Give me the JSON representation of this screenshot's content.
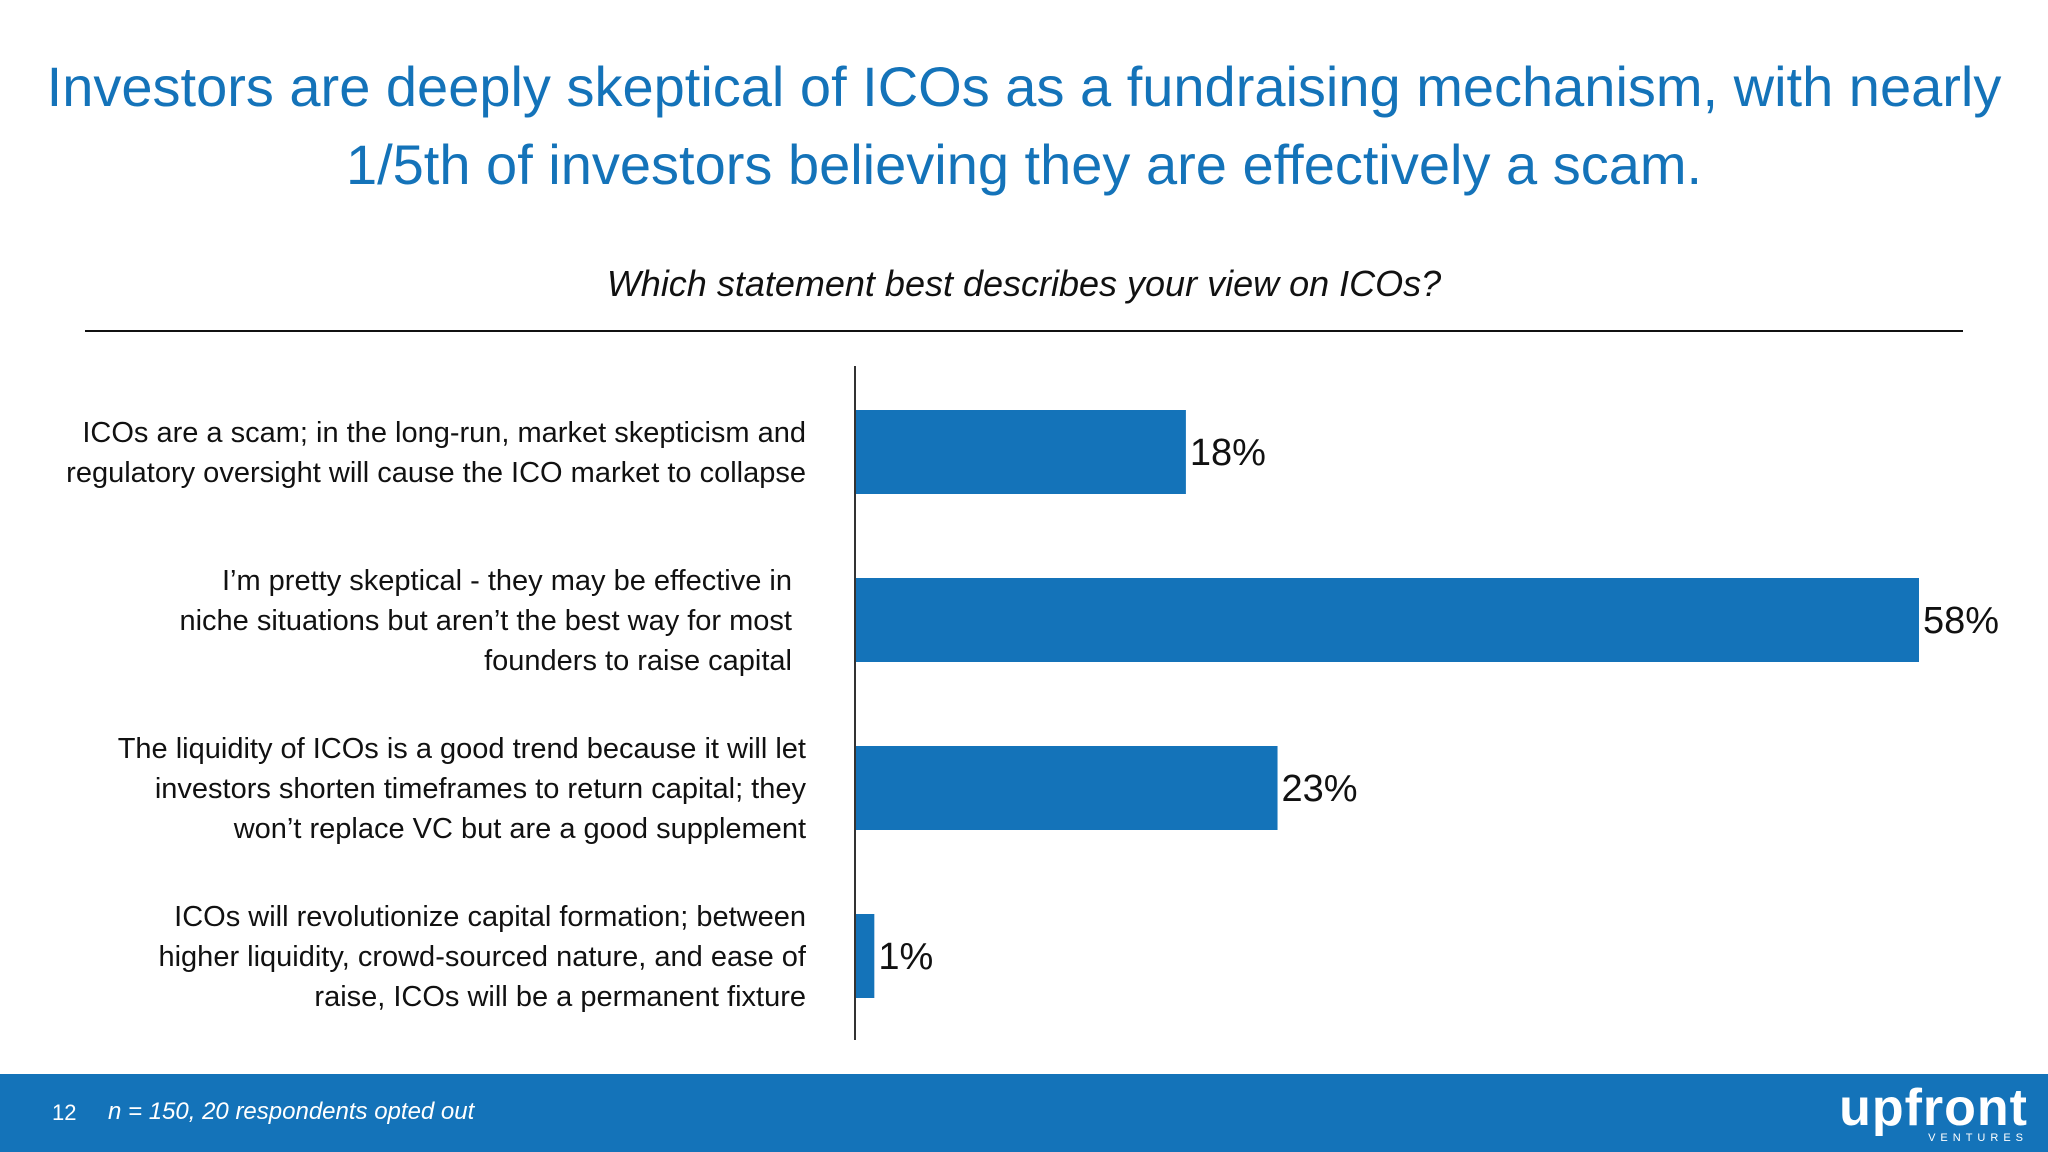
{
  "headline": {
    "line1": "Investors are deeply skeptical of ICOs as a fundraising mechanism, with nearly",
    "line2": "1/5th of investors believing they are effectively a scam."
  },
  "chart_data": {
    "type": "bar",
    "orientation": "horizontal",
    "title": "Which statement best describes your view on ICOs?",
    "categories": [
      [
        "ICOs are a scam; in the long-run, market skepticism and",
        "regulatory oversight will cause the ICO market to collapse"
      ],
      [
        "I’m pretty skeptical - they may  be effective in",
        "niche situations but aren’t the best way for most",
        "founders to raise capital"
      ],
      [
        "The liquidity of ICOs is a good trend because it will let",
        "investors shorten timeframes to return capital; they",
        "won’t replace VC but are a good supplement"
      ],
      [
        "ICOs will revolutionize capital formation; between",
        "higher liquidity, crowd-sourced nature, and ease of",
        "raise, ICOs will be a permanent fixture"
      ]
    ],
    "values": [
      18,
      58,
      23,
      1
    ],
    "value_labels": [
      "18%",
      "58%",
      "23%",
      "1%"
    ],
    "unit": "%",
    "xlim": [
      0,
      58
    ],
    "grid": false,
    "bar_color": "#1473b9"
  },
  "footer": {
    "page_number": "12",
    "note": "n = 150, 20 respondents opted out",
    "logo_text": "upfront",
    "logo_subtext": "VENTURES"
  }
}
